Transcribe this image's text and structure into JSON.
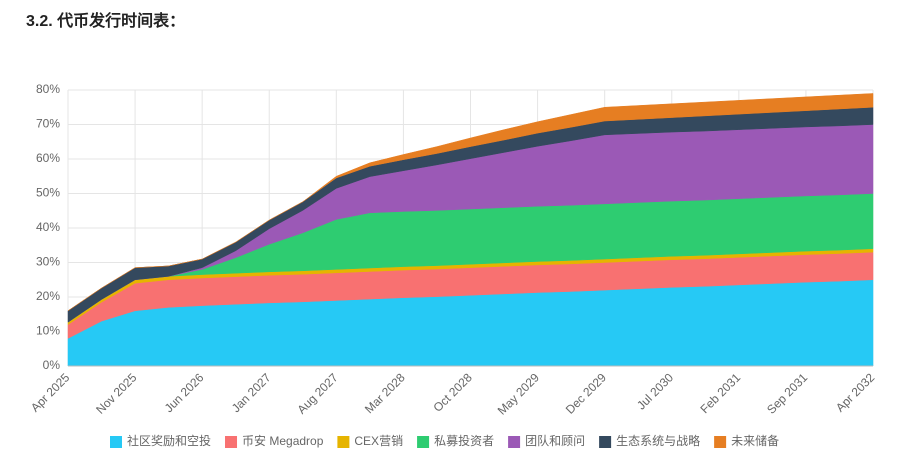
{
  "chart_data": {
    "type": "stacked_area",
    "title": "3.2. 代币发行时间表：",
    "categories": [
      "Apr 2025",
      null,
      "Nov 2025",
      null,
      "Jun 2026",
      null,
      "Jan 2027",
      null,
      "Aug 2027",
      null,
      "Mar 2028",
      null,
      "Oct 2028",
      null,
      "May 2029",
      null,
      "Dec 2029",
      null,
      "Jul 2030",
      null,
      "Feb 2031",
      null,
      "Sep 2031",
      null,
      "Apr 2032"
    ],
    "ylim": [
      0,
      80
    ],
    "yticks": [
      {
        "value": 0,
        "label": "0%"
      },
      {
        "value": 10,
        "label": "10%"
      },
      {
        "value": 20,
        "label": "20%"
      },
      {
        "value": 30,
        "label": "30%"
      },
      {
        "value": 40,
        "label": "40%"
      },
      {
        "value": 50,
        "label": "50%"
      },
      {
        "value": 60,
        "label": "60%"
      },
      {
        "value": 70,
        "label": "70%"
      },
      {
        "value": 80,
        "label": "80%"
      }
    ],
    "grid": true,
    "legend": "bottom",
    "series": [
      {
        "name": "社区奖励和空投",
        "color": "#26c9f5",
        "values": [
          8,
          13,
          16,
          17,
          17.5,
          17.9,
          18.3,
          18.6,
          19,
          19.4,
          19.8,
          20.1,
          20.5,
          20.9,
          21.3,
          21.6,
          22,
          22.4,
          22.8,
          23.1,
          23.5,
          23.9,
          24.3,
          24.6,
          25
        ]
      },
      {
        "name": "币安 Megadrop",
        "color": "#f87171",
        "values": [
          4,
          5.5,
          8,
          8,
          8,
          8,
          8,
          8,
          8,
          8,
          8,
          8,
          8,
          8,
          8,
          8,
          8,
          8,
          8,
          8,
          8,
          8,
          8,
          8,
          8
        ]
      },
      {
        "name": "CEX营销",
        "color": "#e6b400",
        "values": [
          0.7,
          0.8,
          1,
          1,
          1,
          1,
          1,
          1,
          1,
          1,
          1,
          1,
          1,
          1,
          1,
          1,
          1,
          1,
          1,
          1,
          1,
          1,
          1,
          1,
          1
        ]
      },
      {
        "name": "私募投资者",
        "color": "#2ecc71",
        "values": [
          0,
          0,
          0,
          0,
          1.5,
          4.5,
          8,
          11,
          14.5,
          16,
          16,
          16,
          16,
          16,
          16,
          16,
          16,
          16,
          16,
          16,
          16,
          16,
          16,
          16,
          16
        ]
      },
      {
        "name": "团队和顾问",
        "color": "#9b59b6",
        "values": [
          0,
          0,
          0,
          0,
          0.5,
          2,
          4.5,
          6.5,
          9,
          10.5,
          11.8,
          13.2,
          14.6,
          16,
          17.4,
          18.7,
          20,
          20,
          20,
          20,
          20,
          20,
          20,
          20,
          20
        ]
      },
      {
        "name": "生态系统与战略",
        "color": "#34495e",
        "values": [
          3.3,
          3.3,
          3.5,
          3,
          2.5,
          2.5,
          2.5,
          2.5,
          3,
          3,
          3.2,
          3.3,
          3.5,
          3.6,
          3.8,
          3.9,
          4,
          4.1,
          4.2,
          4.4,
          4.5,
          4.6,
          4.7,
          4.9,
          5
        ]
      },
      {
        "name": "未来储备",
        "color": "#e67e22",
        "values": [
          0,
          0,
          0,
          0,
          0,
          0,
          0,
          0,
          0.5,
          1,
          1.5,
          2,
          2.5,
          3,
          3.3,
          3.7,
          4,
          4,
          4,
          4,
          4,
          4,
          4,
          4,
          4
        ]
      }
    ]
  }
}
